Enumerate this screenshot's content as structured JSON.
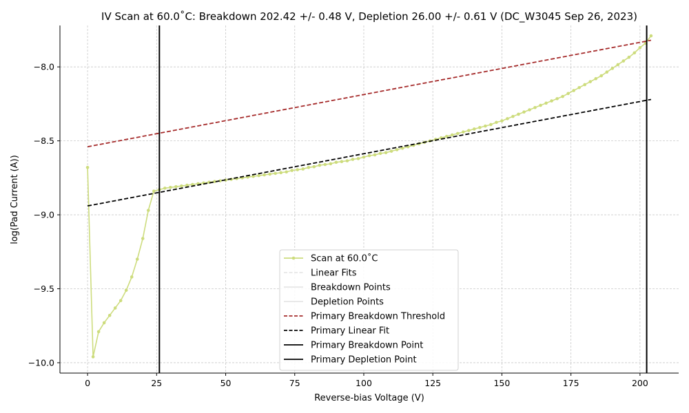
{
  "chart_data": {
    "type": "line",
    "title": "IV Scan at 60.0$^\\circ$C: Breakdown 202.42 +/- 0.48 V, Depletion 26.00 +/- 0.61 V (DC_W3045 Sep 26, 2023)",
    "title_display": "IV Scan at 60.0˚C: Breakdown 202.42 +/- 0.48 V, Depletion 26.00 +/- 0.61 V (DC_W3045 Sep 26, 2023)",
    "xlabel": "Reverse-bias Voltage (V)",
    "ylabel": "log(Pad Current (A))",
    "xlim": [
      -10,
      214
    ],
    "ylim": [
      -10.07,
      -7.72
    ],
    "xticks": [
      0,
      25,
      50,
      75,
      100,
      125,
      150,
      175,
      200
    ],
    "xtick_labels": [
      "0",
      "25",
      "50",
      "75",
      "100",
      "125",
      "150",
      "175",
      "200"
    ],
    "yticks": [
      -10.0,
      -9.5,
      -9.0,
      -8.5,
      -8.0
    ],
    "ytick_labels": [
      "−10.0",
      "−9.5",
      "−9.0",
      "−8.5",
      "−8.0"
    ],
    "grid": true,
    "legend_position": "lower-center",
    "series": [
      {
        "name": "Scan at 60.0˚C",
        "color": "#cddc7d",
        "marker": "circle",
        "x": [
          0,
          2,
          4,
          6,
          8,
          10,
          12,
          14,
          16,
          18,
          20,
          22,
          24,
          26,
          28,
          30,
          32,
          34,
          36,
          38,
          40,
          42,
          44,
          46,
          48,
          50,
          52,
          54,
          56,
          58,
          60,
          62,
          64,
          66,
          68,
          70,
          72,
          74,
          76,
          78,
          80,
          82,
          84,
          86,
          88,
          90,
          92,
          94,
          96,
          98,
          100,
          102,
          104,
          106,
          108,
          110,
          112,
          114,
          116,
          118,
          120,
          122,
          124,
          126,
          128,
          130,
          132,
          134,
          136,
          138,
          140,
          142,
          144,
          146,
          148,
          150,
          152,
          154,
          156,
          158,
          160,
          162,
          164,
          166,
          168,
          170,
          172,
          174,
          176,
          178,
          180,
          182,
          184,
          186,
          188,
          190,
          192,
          194,
          196,
          198,
          200,
          202,
          204
        ],
        "y": [
          -8.68,
          -9.96,
          -9.79,
          -9.73,
          -9.68,
          -9.63,
          -9.58,
          -9.51,
          -9.42,
          -9.3,
          -9.16,
          -8.97,
          -8.84,
          -8.83,
          -8.82,
          -8.815,
          -8.81,
          -8.805,
          -8.8,
          -8.795,
          -8.79,
          -8.785,
          -8.78,
          -8.775,
          -8.77,
          -8.765,
          -8.76,
          -8.755,
          -8.75,
          -8.745,
          -8.74,
          -8.735,
          -8.73,
          -8.725,
          -8.72,
          -8.715,
          -8.71,
          -8.7,
          -8.695,
          -8.69,
          -8.68,
          -8.675,
          -8.665,
          -8.66,
          -8.655,
          -8.645,
          -8.64,
          -8.635,
          -8.625,
          -8.62,
          -8.61,
          -8.6,
          -8.595,
          -8.585,
          -8.58,
          -8.57,
          -8.56,
          -8.55,
          -8.54,
          -8.53,
          -8.52,
          -8.51,
          -8.5,
          -8.49,
          -8.48,
          -8.47,
          -8.46,
          -8.45,
          -8.44,
          -8.43,
          -8.42,
          -8.41,
          -8.4,
          -8.39,
          -8.375,
          -8.365,
          -8.35,
          -8.335,
          -8.32,
          -8.305,
          -8.29,
          -8.275,
          -8.26,
          -8.245,
          -8.23,
          -8.215,
          -8.2,
          -8.18,
          -8.16,
          -8.14,
          -8.12,
          -8.1,
          -8.08,
          -8.06,
          -8.035,
          -8.01,
          -7.985,
          -7.96,
          -7.935,
          -7.905,
          -7.87,
          -7.84,
          -7.79
        ]
      },
      {
        "name": "Linear Fits",
        "color": "#e6e6e6",
        "style": "dashed",
        "x": [],
        "y": []
      },
      {
        "name": "Breakdown Points",
        "color": "#e6e6e6",
        "style": "solid",
        "x": [],
        "y": []
      },
      {
        "name": "Depletion Points",
        "color": "#e6e6e6",
        "style": "solid",
        "x": [],
        "y": []
      },
      {
        "name": "Primary Breakdown Threshold",
        "color": "#a52a2a",
        "style": "dashed",
        "x": [
          0,
          204
        ],
        "y": [
          -8.54,
          -7.82
        ]
      },
      {
        "name": "Primary Linear Fit",
        "color": "#000000",
        "style": "dashed",
        "x": [
          0,
          204
        ],
        "y": [
          -8.94,
          -8.22
        ]
      },
      {
        "name": "Primary Breakdown Point",
        "color": "#000000",
        "style": "vline",
        "x": [
          202.42
        ]
      },
      {
        "name": "Primary Depletion Point",
        "color": "#000000",
        "style": "vline",
        "x": [
          26.0
        ]
      }
    ]
  }
}
